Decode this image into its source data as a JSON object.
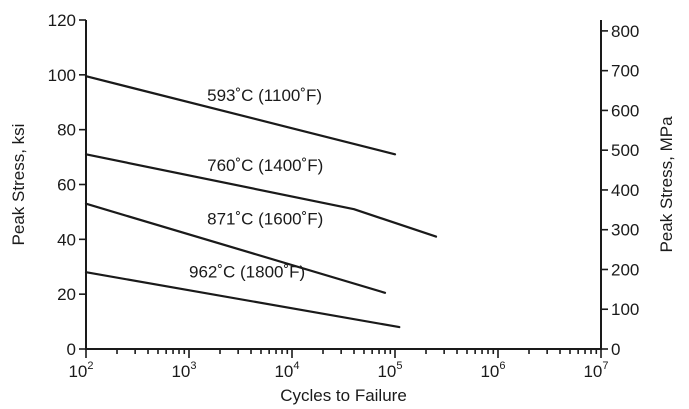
{
  "chart_data": {
    "type": "line",
    "xlabel": "Cycles to Failure",
    "ylabel": "Peak Stress, ksi",
    "ylabel_right": "Peak Stress, MPa",
    "xscale": "log",
    "xlim": [
      100,
      10000000
    ],
    "ylim": [
      0,
      120
    ],
    "ylim_right": [
      0,
      827.4
    ],
    "x_ticks": [
      {
        "value": 100,
        "base": "10",
        "exp": "2"
      },
      {
        "value": 1000,
        "base": "10",
        "exp": "3"
      },
      {
        "value": 10000,
        "base": "10",
        "exp": "4"
      },
      {
        "value": 100000,
        "base": "10",
        "exp": "5"
      },
      {
        "value": 1000000,
        "base": "10",
        "exp": "6"
      },
      {
        "value": 10000000,
        "base": "10",
        "exp": "7"
      }
    ],
    "y_ticks": [
      0,
      20,
      40,
      60,
      80,
      100,
      120
    ],
    "y_ticks_right": [
      0,
      100,
      200,
      300,
      400,
      500,
      600,
      700,
      800
    ],
    "grid": false,
    "series": [
      {
        "name": "593˚C (1100˚F)",
        "x": [
          100,
          100000
        ],
        "y": [
          99.5,
          71
        ]
      },
      {
        "name": "760˚C (1400˚F)",
        "x": [
          100,
          40000,
          250000
        ],
        "y": [
          71,
          51,
          41
        ]
      },
      {
        "name": "871˚C (1600˚F)",
        "x": [
          100,
          80000
        ],
        "y": [
          53,
          20.5
        ]
      },
      {
        "name": "962˚C (1800˚F)",
        "x": [
          100,
          110000
        ],
        "y": [
          28,
          8
        ]
      }
    ],
    "series_labels": [
      {
        "text": "593˚C (1100˚F)",
        "x": 1500,
        "y": 90.5
      },
      {
        "text": "760˚C (1400˚F)",
        "x": 1500,
        "y": 65
      },
      {
        "text": "871˚C (1600˚F)",
        "x": 1500,
        "y": 45.5
      },
      {
        "text": "962˚C (1800˚F)",
        "x": 1000,
        "y": 26
      }
    ]
  }
}
